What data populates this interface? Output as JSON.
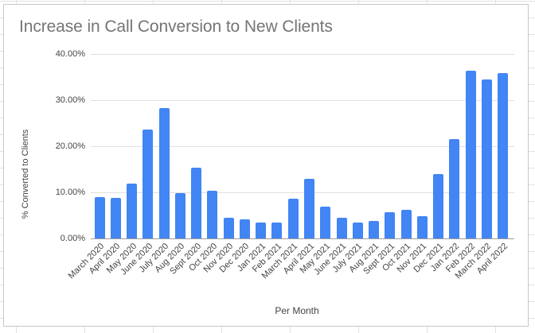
{
  "chart_data": {
    "type": "bar",
    "title": "Increase in Call Conversion to New Clients",
    "xlabel": "Per Month",
    "ylabel": "% Converted to Clients",
    "ylim": [
      0,
      40
    ],
    "yticks": [
      "0.00%",
      "10.00%",
      "20.00%",
      "30.00%",
      "40.00%"
    ],
    "grid": true,
    "legend": "none",
    "bar_color": "#4285f4",
    "categories": [
      "March 2020",
      "April 2020",
      "May 2020",
      "June 2020",
      "July 2020",
      "Aug 2020",
      "Sept 2020",
      "Oct 2020",
      "Nov 2020",
      "Dec 2020",
      "Jan 2021",
      "Feb 2021",
      "March 2021",
      "April 2021",
      "May 2021",
      "June 2021",
      "July 2021",
      "Aug 2021",
      "Sept 2021",
      "Oct 2021",
      "Nov 2021",
      "Dec 2021",
      "Jan 2022",
      "Feb 2022",
      "March 2022",
      "April 2022"
    ],
    "values": [
      9.0,
      8.8,
      11.9,
      23.7,
      28.2,
      9.9,
      15.3,
      10.4,
      4.4,
      4.2,
      3.5,
      3.5,
      8.6,
      13.0,
      6.9,
      4.4,
      3.5,
      3.8,
      5.7,
      6.2,
      4.8,
      14.0,
      21.5,
      36.3,
      34.4,
      35.9
    ]
  }
}
